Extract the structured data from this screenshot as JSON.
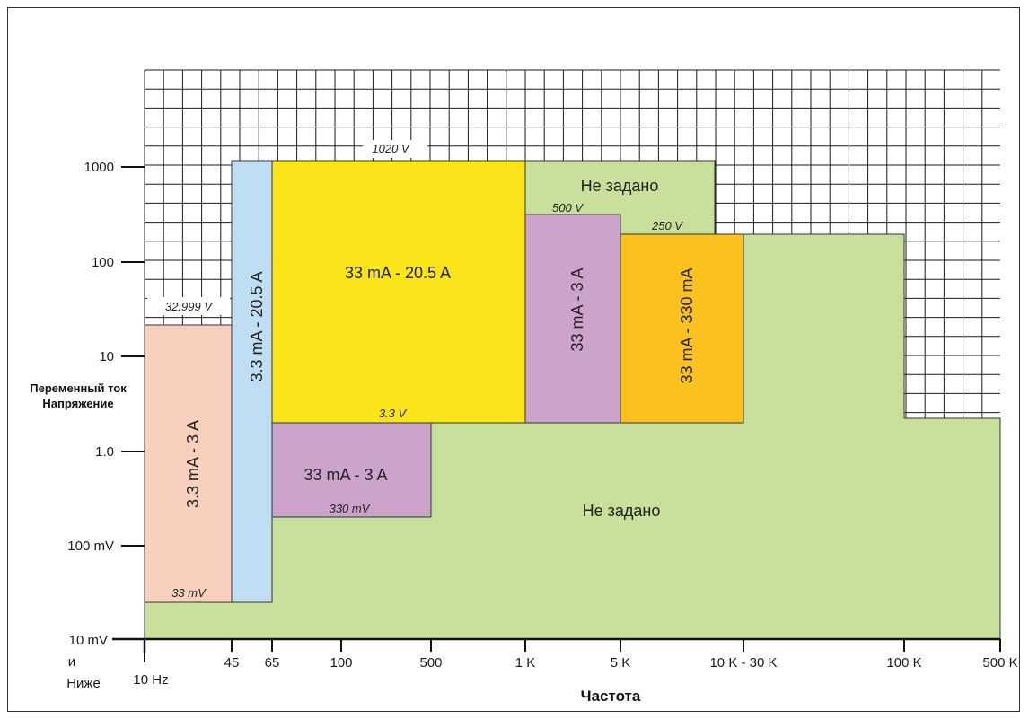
{
  "colors": {
    "grid_bg": "#ffffff",
    "grid_line": "#1a1a1a",
    "unspecified": "#c8e09b",
    "salmon": "#f9d0bd",
    "blue": "#c0def3",
    "yellow": "#fbe41a",
    "purple": "#cba3cb",
    "orange": "#fbc21f",
    "border": "#333333"
  },
  "chart_data": {
    "type": "area",
    "title": "",
    "xlabel": "Частота",
    "ylabel": [
      "Переменный ток",
      "Напряжение"
    ],
    "x_ticks": [
      {
        "label": "45"
      },
      {
        "label": "65"
      },
      {
        "label": "100"
      },
      {
        "label": "500"
      },
      {
        "label": "1 K"
      },
      {
        "label": "5 K"
      },
      {
        "label": "10 K - 30 K"
      },
      {
        "label": "100 K"
      },
      {
        "label": "500 K"
      }
    ],
    "x_first_label": "10 Hz",
    "y_ticks": [
      "1000",
      "100",
      "10",
      "1.0",
      "100 mV"
    ],
    "y_bottom_label": [
      "10 mV",
      "и",
      "Ниже"
    ],
    "regions": [
      {
        "id": "unspecified-bottom",
        "label": "Не задано",
        "color_key": "unspecified",
        "x_range": [
          "10 Hz",
          "500 K"
        ],
        "v_range": [
          "10 mV",
          "2 V"
        ]
      },
      {
        "id": "unspecified-top",
        "label": "Не задано",
        "color_key": "unspecified",
        "x_range": [
          "1 K",
          "10 K"
        ],
        "v_range": [
          "500 V",
          "1020 V"
        ]
      },
      {
        "id": "salmon-3.3mA-3A",
        "label": "3.3 mA - 3 A",
        "color_key": "salmon",
        "x_range": [
          "10 Hz",
          "45"
        ],
        "v_range": [
          "33 mV",
          "32.999 V"
        ],
        "vertical": true
      },
      {
        "id": "blue-3.3mA-20.5A",
        "label": "3.3 mA - 20.5 A",
        "color_key": "blue",
        "x_range": [
          "45",
          "65"
        ],
        "v_range": [
          "33 mV",
          "1020 V"
        ],
        "vertical": true
      },
      {
        "id": "yellow-33mA-20.5A",
        "label": "33 mA - 20.5 A",
        "color_key": "yellow",
        "x_range": [
          "65",
          "1 K"
        ],
        "v_range": [
          "3.3 V",
          "1020 V"
        ]
      },
      {
        "id": "purple-33mA-3A-low",
        "label": "33 mA - 3 A",
        "color_key": "purple",
        "x_range": [
          "65",
          "500"
        ],
        "v_range": [
          "330 mV",
          "3.3 V"
        ]
      },
      {
        "id": "purple-33mA-3A-high",
        "label": "33 mA - 3 A",
        "color_key": "purple",
        "x_range": [
          "1 K",
          "5 K"
        ],
        "v_range": [
          "3.3 V",
          "500 V"
        ],
        "vertical": true
      },
      {
        "id": "orange-33mA-330mA",
        "label": "33 mA - 330 mA",
        "color_key": "orange",
        "x_range": [
          "5 K",
          "10 K - 30 K"
        ],
        "v_range": [
          "3.3 V",
          "250 V"
        ],
        "vertical": true
      }
    ],
    "annotations": [
      "1020 V",
      "32.999 V",
      "500 V",
      "250 V",
      "3.3 V",
      "330 mV",
      "33 mV"
    ],
    "grid": true,
    "legend": "none"
  }
}
